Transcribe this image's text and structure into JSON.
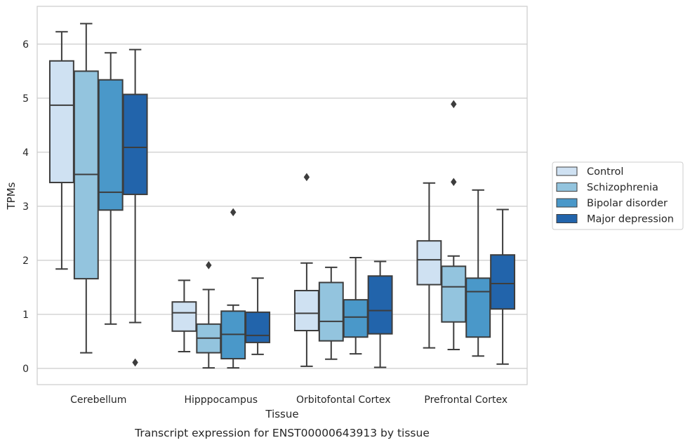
{
  "caption": "Transcript expression for ENST00000643913 by tissue",
  "chart_data": {
    "type": "box",
    "xlabel": "Tissue",
    "ylabel": "TPMs",
    "ylim": [
      -0.3,
      6.7
    ],
    "yticks": [
      0,
      1,
      2,
      3,
      4,
      5,
      6
    ],
    "grid": true,
    "legend_position": "right",
    "categories": [
      "Cerebellum",
      "Hipppocampus",
      "Orbitofontal Cortex",
      "Prefrontal Cortex"
    ],
    "series": [
      {
        "name": "Control",
        "color": "#cfe1f2",
        "boxes": [
          {
            "whisker_low": 1.84,
            "q1": 3.44,
            "median": 4.87,
            "q3": 5.69,
            "whisker_high": 6.23,
            "outliers": []
          },
          {
            "whisker_low": 0.31,
            "q1": 0.69,
            "median": 1.03,
            "q3": 1.23,
            "whisker_high": 1.63,
            "outliers": []
          },
          {
            "whisker_low": 0.04,
            "q1": 0.7,
            "median": 1.02,
            "q3": 1.44,
            "whisker_high": 1.95,
            "outliers": [
              3.54
            ]
          },
          {
            "whisker_low": 0.38,
            "q1": 1.55,
            "median": 2.01,
            "q3": 2.36,
            "whisker_high": 3.43,
            "outliers": []
          }
        ]
      },
      {
        "name": "Schizophrenia",
        "color": "#93c4de",
        "boxes": [
          {
            "whisker_low": 0.29,
            "q1": 1.66,
            "median": 3.59,
            "q3": 5.5,
            "whisker_high": 6.38,
            "outliers": []
          },
          {
            "whisker_low": 0.01,
            "q1": 0.29,
            "median": 0.56,
            "q3": 0.82,
            "whisker_high": 1.46,
            "outliers": [
              1.91
            ]
          },
          {
            "whisker_low": 0.17,
            "q1": 0.51,
            "median": 0.87,
            "q3": 1.59,
            "whisker_high": 1.87,
            "outliers": []
          },
          {
            "whisker_low": 0.35,
            "q1": 0.86,
            "median": 1.51,
            "q3": 1.89,
            "whisker_high": 2.08,
            "outliers": [
              3.45,
              4.89
            ]
          }
        ]
      },
      {
        "name": "Bipolar disorder",
        "color": "#4a98c9",
        "boxes": [
          {
            "whisker_low": 0.82,
            "q1": 2.93,
            "median": 3.26,
            "q3": 5.34,
            "whisker_high": 5.84,
            "outliers": []
          },
          {
            "whisker_low": 0.01,
            "q1": 0.18,
            "median": 0.63,
            "q3": 1.06,
            "whisker_high": 1.17,
            "outliers": [
              2.89
            ]
          },
          {
            "whisker_low": 0.27,
            "q1": 0.58,
            "median": 0.95,
            "q3": 1.27,
            "whisker_high": 2.05,
            "outliers": []
          },
          {
            "whisker_low": 0.23,
            "q1": 0.58,
            "median": 1.42,
            "q3": 1.67,
            "whisker_high": 3.3,
            "outliers": []
          }
        ]
      },
      {
        "name": "Major depression",
        "color": "#2264ab",
        "boxes": [
          {
            "whisker_low": 0.85,
            "q1": 3.22,
            "median": 4.09,
            "q3": 5.07,
            "whisker_high": 5.9,
            "outliers": [
              0.11
            ]
          },
          {
            "whisker_low": 0.26,
            "q1": 0.48,
            "median": 0.61,
            "q3": 1.04,
            "whisker_high": 1.67,
            "outliers": []
          },
          {
            "whisker_low": 0.02,
            "q1": 0.64,
            "median": 1.07,
            "q3": 1.71,
            "whisker_high": 1.98,
            "outliers": []
          },
          {
            "whisker_low": 0.08,
            "q1": 1.1,
            "median": 1.57,
            "q3": 2.1,
            "whisker_high": 2.94,
            "outliers": []
          }
        ]
      }
    ]
  }
}
